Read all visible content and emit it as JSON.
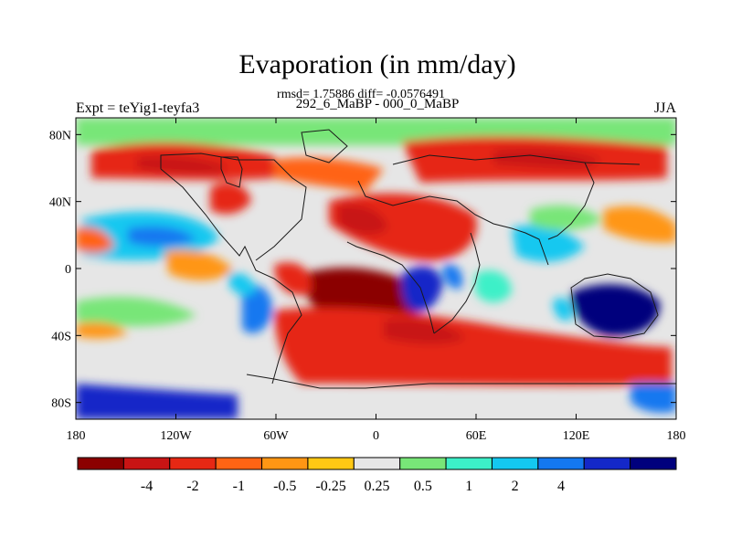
{
  "title": "Evaporation (in mm/day)",
  "stats": "rmsd= 1.75886 diff= -0.0576491",
  "subtitle": "292_6_MaBP - 000_0_MaBP",
  "left_label": "Expt = teYig1-teyfa3",
  "right_label": "JJA",
  "map": {
    "projection": "cylindrical-equidistant",
    "lon_range": [
      -180,
      180
    ],
    "lat_range": [
      -90,
      90
    ],
    "x_ticks": [
      {
        "lon": -180,
        "label": "180"
      },
      {
        "lon": -120,
        "label": "120W"
      },
      {
        "lon": -60,
        "label": "60W"
      },
      {
        "lon": 0,
        "label": "0"
      },
      {
        "lon": 60,
        "label": "60E"
      },
      {
        "lon": 120,
        "label": "120E"
      },
      {
        "lon": 180,
        "label": "180"
      }
    ],
    "y_ticks": [
      {
        "lat": 80,
        "label": "80N"
      },
      {
        "lat": 40,
        "label": "40N"
      },
      {
        "lat": 0,
        "label": "0"
      },
      {
        "lat": -40,
        "label": "40S"
      },
      {
        "lat": -80,
        "label": "80S"
      }
    ]
  },
  "colorbar": {
    "colors": [
      "#8b0000",
      "#c81414",
      "#e62814",
      "#ff6414",
      "#ff9614",
      "#ffc814",
      "#e6e6e6",
      "#78e678",
      "#3cf0c8",
      "#14c8f0",
      "#1478f0",
      "#1428c8",
      "#00007d"
    ],
    "labels": [
      "-4",
      "-2",
      "-1",
      "-0.5",
      "-0.25",
      "0.25",
      "0.5",
      "1",
      "2",
      "4"
    ]
  },
  "colors": {
    "ocean_background": "#e6e6e6",
    "coastline": "#1a1a1a",
    "strong_negative": "#8b0000",
    "negative": "#e62814",
    "weak_positive": "#78e678",
    "positive": "#14c8f0",
    "strong_positive": "#00007d"
  }
}
